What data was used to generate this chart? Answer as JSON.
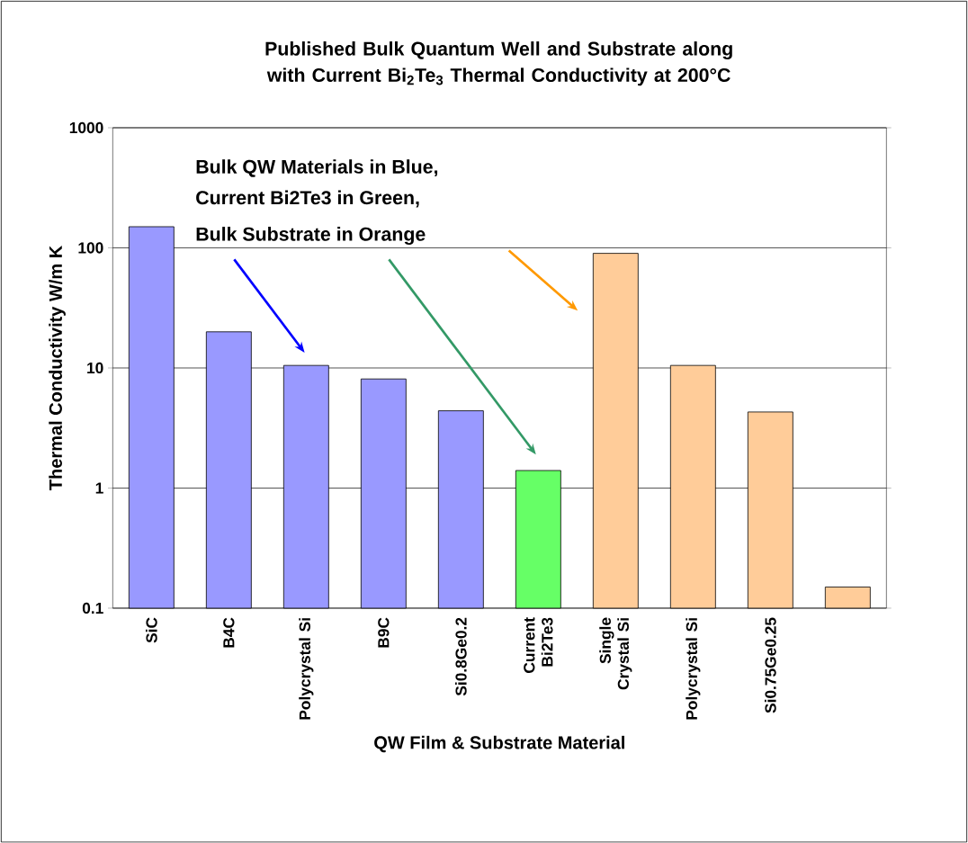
{
  "chart_data": {
    "type": "bar",
    "title": "Published Bulk Quantum Well and Substrate along with Current Bi$_{2}$Te$_{3}$ Thermal Conductivity at 200°C",
    "xlabel": "QW Film & Substrate Material",
    "ylabel": "Thermal Conductivity W/m K",
    "categories": [
      "SiC",
      "B4C",
      "Polycrystal Si",
      "B9C",
      "Si0.8Ge0.2",
      "Current Bi2Te3",
      "Single Crystal Si",
      "Polycrystal Si",
      "Si0.75Ge0.25",
      null
    ],
    "values": [
      150,
      20,
      10.5,
      8.1,
      4.4,
      1.4,
      90,
      10.5,
      4.3,
      0.15
    ],
    "colors": [
      "#9999ff",
      "#9999ff",
      "#9999ff",
      "#9999ff",
      "#9999ff",
      "#66ff66",
      "#ffcc99",
      "#ffcc99",
      "#ffcc99",
      "#ffcc99"
    ],
    "ylim": [
      0.1,
      1000
    ],
    "yticks": [
      0.1,
      1,
      10,
      100,
      1000
    ],
    "log": "y",
    "grid": "y",
    "annotations": [
      "Bulk QW Materials in Blue,",
      "Current Bi2Te3 in Green,",
      "Bulk Substrate in Orange"
    ]
  }
}
